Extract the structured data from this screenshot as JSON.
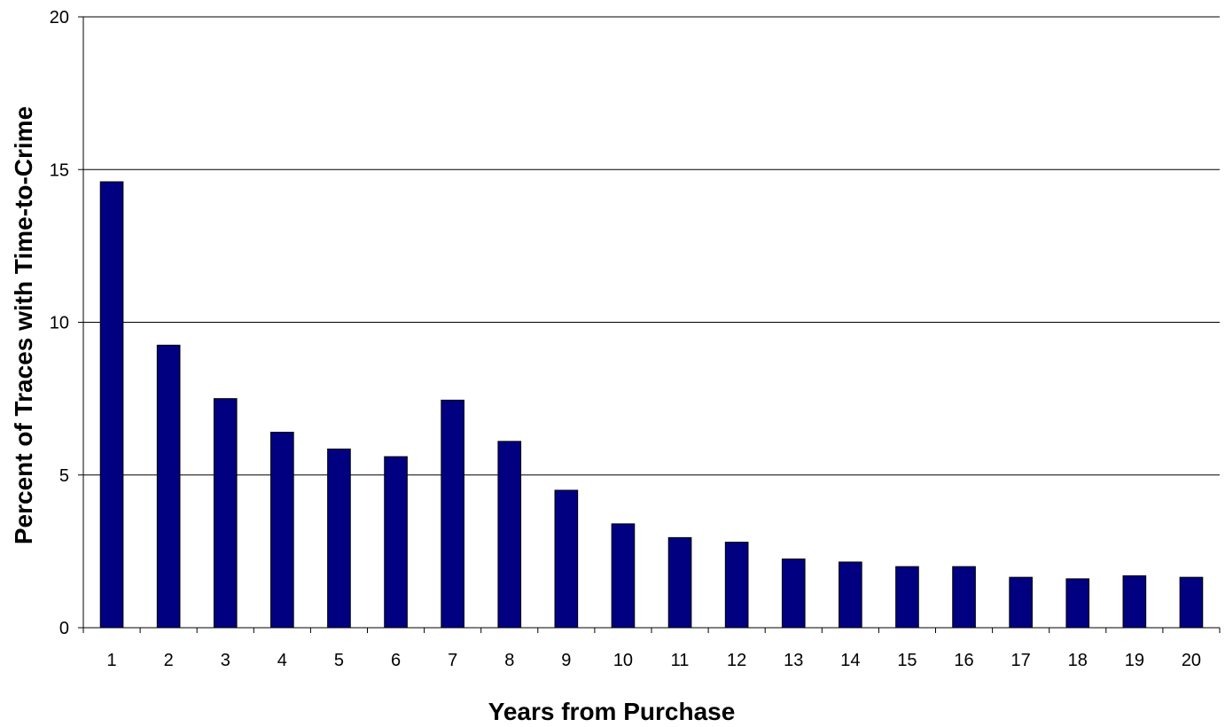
{
  "chart_data": {
    "type": "bar",
    "title": "",
    "xlabel": "Years from Purchase",
    "ylabel": "Percent of Traces with Time-to-Crime",
    "categories": [
      "1",
      "2",
      "3",
      "4",
      "5",
      "6",
      "7",
      "8",
      "9",
      "10",
      "11",
      "12",
      "13",
      "14",
      "15",
      "16",
      "17",
      "18",
      "19",
      "20"
    ],
    "values": [
      14.6,
      9.25,
      7.5,
      6.4,
      5.85,
      5.6,
      7.45,
      6.1,
      4.5,
      3.4,
      2.95,
      2.8,
      2.25,
      2.15,
      2.0,
      2.0,
      1.65,
      1.6,
      1.7,
      1.65
    ],
    "ylim": [
      0,
      20
    ],
    "yticks": [
      0,
      5,
      10,
      15,
      20
    ],
    "grid": true,
    "legend": "none",
    "colors": {
      "bar": "#000080",
      "bar_outline": "#000000",
      "grid": "#000000",
      "axis": "#000000"
    }
  }
}
